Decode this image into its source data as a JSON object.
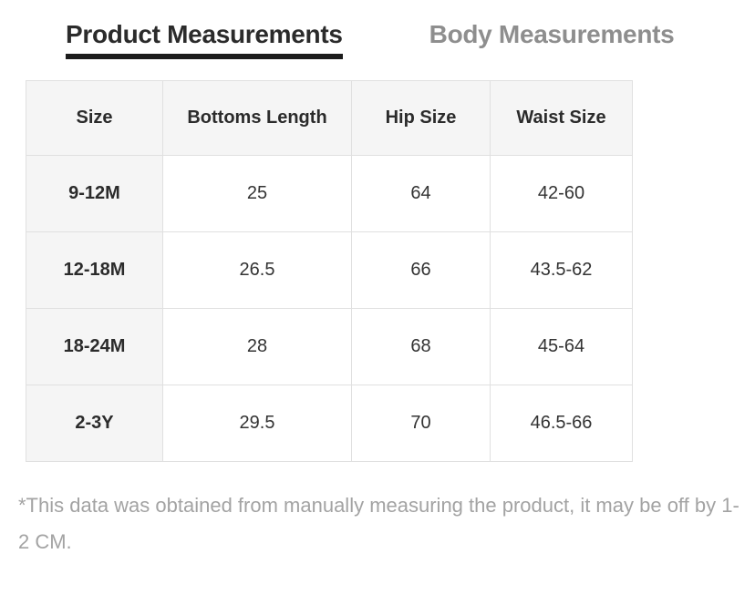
{
  "tabs": {
    "product": {
      "label": "Product Measurements",
      "active": true
    },
    "body": {
      "label": "Body Measurements",
      "active": false
    }
  },
  "table": {
    "columns": [
      "Size",
      "Bottoms Length",
      "Hip Size",
      "Waist Size"
    ],
    "rows": [
      [
        "9-12M",
        "25",
        "64",
        "42-60"
      ],
      [
        "12-18M",
        "26.5",
        "66",
        "43.5-62"
      ],
      [
        "18-24M",
        "28",
        "68",
        "45-64"
      ],
      [
        "2-3Y",
        "29.5",
        "70",
        "46.5-66"
      ]
    ]
  },
  "footnote": "*This data was obtained from manually measuring the product, it may be off by 1-2 CM.",
  "colors": {
    "text_dark": "#2b2b2b",
    "tab_inactive_gray": "#8e8e8e",
    "active_underline": "#1c1c1c",
    "cell_background_gray": "#f5f5f5",
    "border_gray": "#e0e0e0",
    "footnote_gray": "#a3a3a3"
  }
}
